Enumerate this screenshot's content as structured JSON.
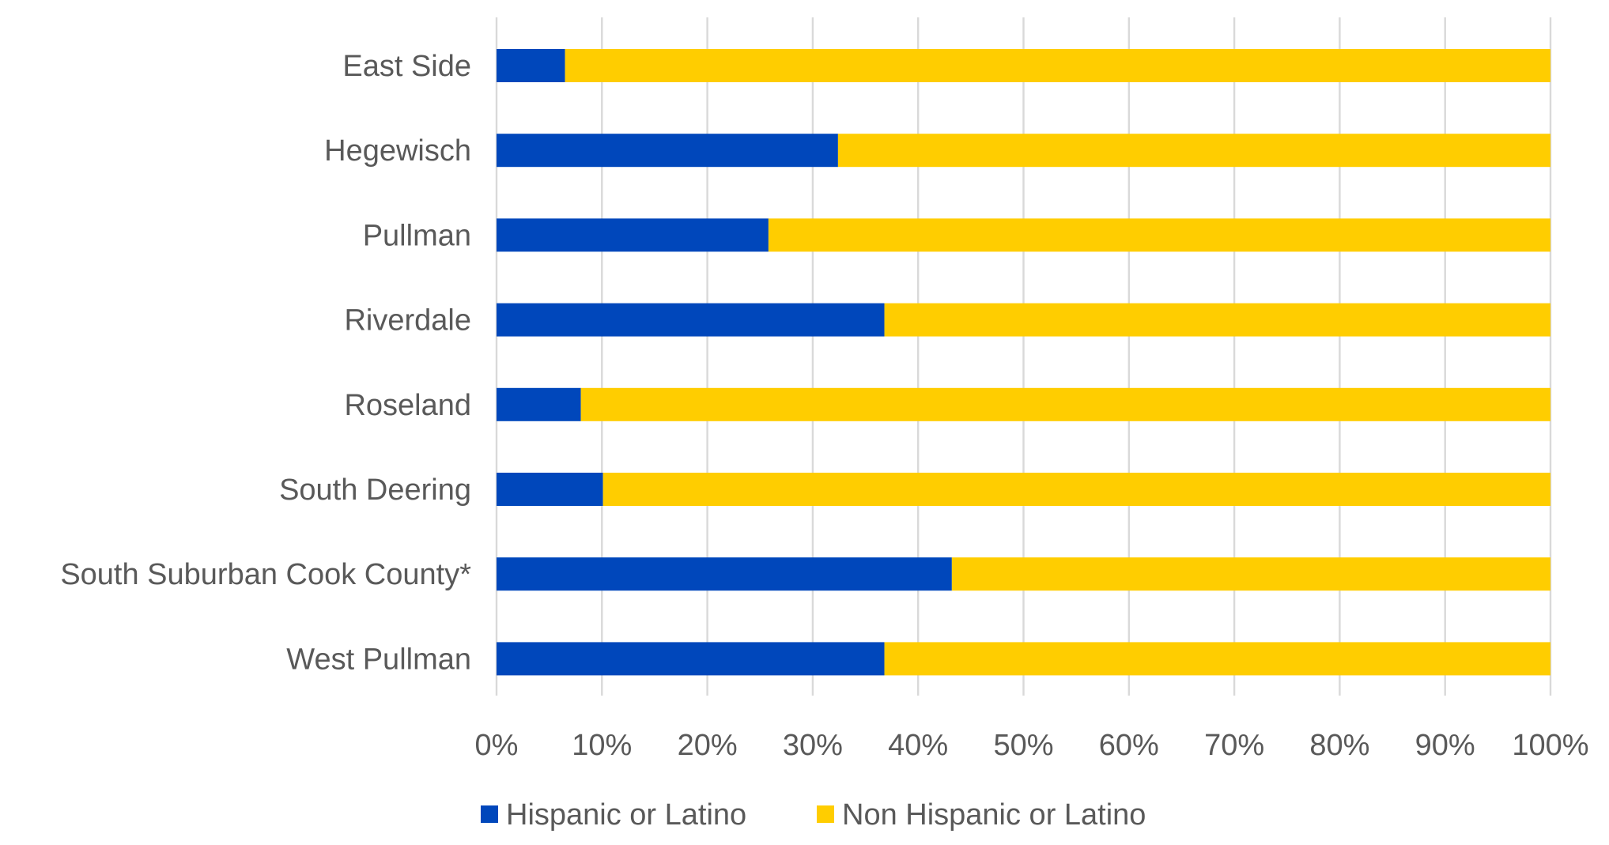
{
  "chart_data": {
    "type": "bar",
    "orientation": "horizontal",
    "stacked": "percent",
    "title": "",
    "xlabel": "",
    "ylabel": "",
    "xlim": [
      0,
      100
    ],
    "grid": true,
    "legend_position": "bottom",
    "categories": [
      "East Side",
      "Hegewisch",
      "Pullman",
      "Riverdale",
      "Roseland",
      "South Deering",
      "South Suburban Cook County*",
      "West Pullman"
    ],
    "series": [
      {
        "name": "Hispanic or Latino",
        "color": "#0047BB",
        "values": [
          6.5,
          32.4,
          25.8,
          36.8,
          8.0,
          10.1,
          43.2,
          36.8
        ]
      },
      {
        "name": "Non Hispanic or Latino",
        "color": "#FFCD00",
        "values": [
          93.5,
          67.6,
          74.2,
          63.2,
          92.0,
          89.9,
          56.8,
          63.2
        ]
      }
    ],
    "x_ticks": [
      "0%",
      "10%",
      "20%",
      "30%",
      "40%",
      "50%",
      "60%",
      "70%",
      "80%",
      "90%",
      "100%"
    ]
  }
}
